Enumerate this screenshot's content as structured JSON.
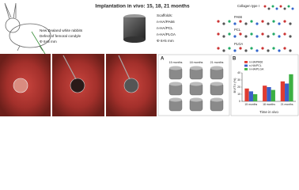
{
  "header": {
    "title": "Implantation in vivo: 15, 18, 21 months"
  },
  "animal": {
    "species": "New Zealand white rabbits",
    "site": "Defect of femoral condyle",
    "size": "Φ 6×5 mm"
  },
  "scaffolds": {
    "label": "Scaffolds:",
    "items": [
      "n-HA/PA66",
      "n-HA/PCL",
      "n-HA/PLGA"
    ],
    "size": "Φ 6×5 mm"
  },
  "molecules": [
    "Collagen type I",
    "PA66",
    "PCL",
    "PLGA"
  ],
  "panel_a": {
    "letter": "A",
    "columns": [
      "15 months",
      "18 months",
      "21 months"
    ]
  },
  "chart_data": {
    "type": "bar",
    "letter": "B",
    "categories": [
      "15 months",
      "18 months",
      "21 months"
    ],
    "series": [
      {
        "name": "n-HA/PA66",
        "color": "#e03c31",
        "values": [
          18,
          22,
          28
        ]
      },
      {
        "name": "n-HA/PCL",
        "color": "#3b5fc8",
        "values": [
          14,
          20,
          25
        ]
      },
      {
        "name": "n-HA/PLGA",
        "color": "#3cb043",
        "values": [
          10,
          16,
          38
        ]
      }
    ],
    "ylim": [
      0,
      40
    ],
    "yticks": [
      0,
      10,
      20,
      30,
      40
    ],
    "xlabel": "Time in vivo",
    "ylabel": "BV/TV (%)"
  }
}
